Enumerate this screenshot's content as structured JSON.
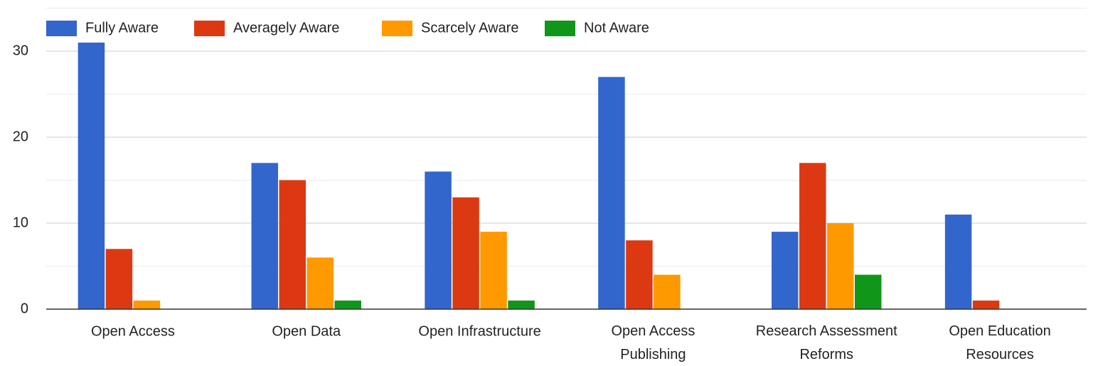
{
  "chart_data": {
    "type": "bar",
    "categories": [
      "Open Access",
      "Open Data",
      "Open Infrastructure",
      "Open Access Publishing",
      "Research Assessment Reforms",
      "Open Education Resources"
    ],
    "series": [
      {
        "name": "Fully Aware",
        "color": "#3366cc",
        "values": [
          31,
          17,
          16,
          27,
          9,
          11
        ]
      },
      {
        "name": "Averagely Aware",
        "color": "#dc3912",
        "values": [
          7,
          15,
          13,
          8,
          17,
          1
        ]
      },
      {
        "name": "Scarcely Aware",
        "color": "#ff9900",
        "values": [
          1,
          6,
          9,
          4,
          10,
          0
        ]
      },
      {
        "name": "Not Aware",
        "color": "#109618",
        "values": [
          0,
          1,
          1,
          0,
          4,
          0
        ]
      }
    ],
    "ylim": [
      0,
      35
    ],
    "yticks": [
      0,
      10,
      20,
      30
    ],
    "grid": true,
    "legend": "top"
  }
}
